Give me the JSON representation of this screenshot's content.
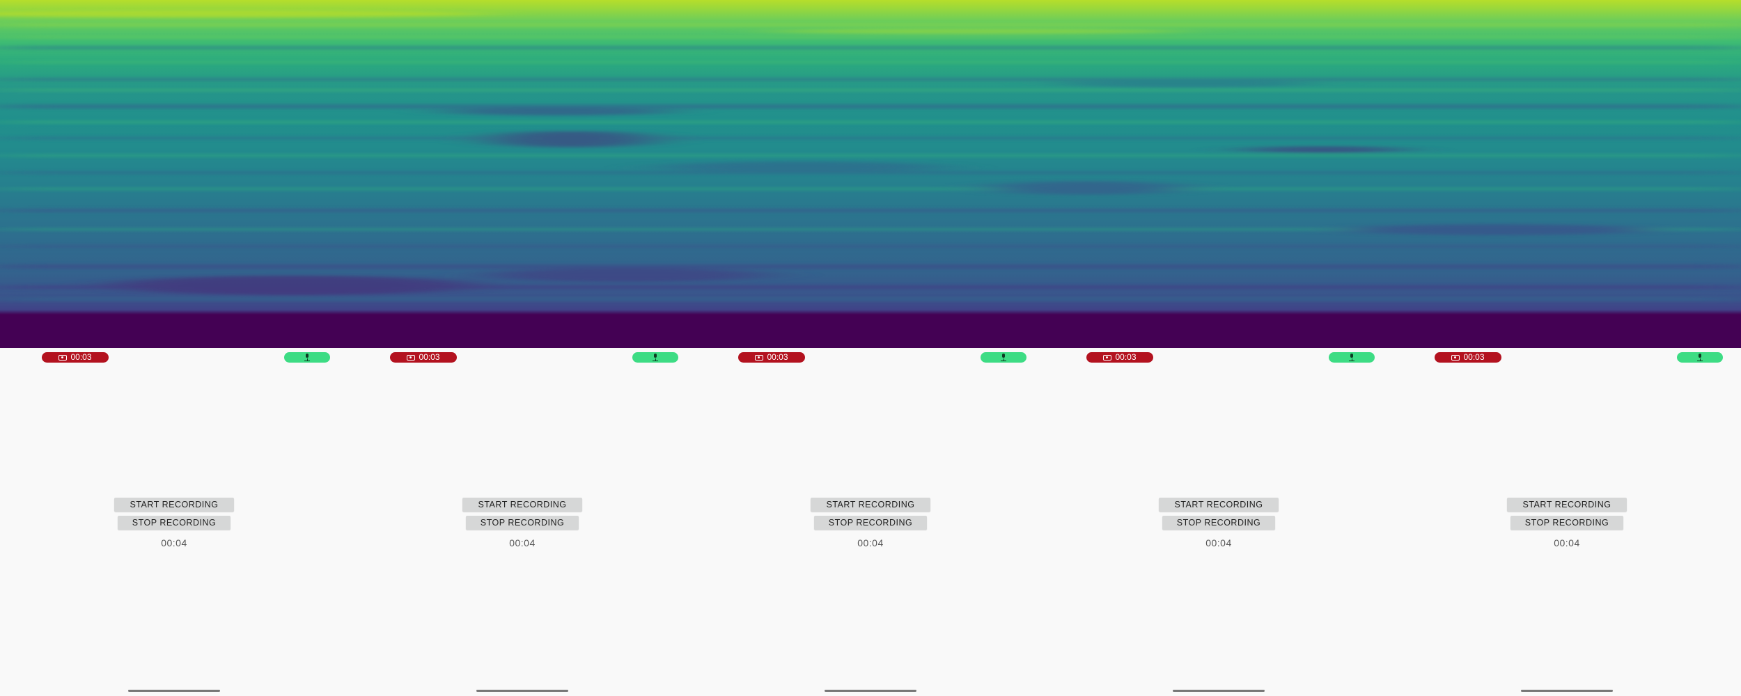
{
  "panels": [
    {
      "status": {
        "record_time": "00:03",
        "record_icon": "screen-record-icon",
        "mic_icon": "microphone-icon"
      },
      "buttons": {
        "start_label": "START RECORDING",
        "stop_label": "STOP RECORDING"
      },
      "timer": "00:04"
    },
    {
      "status": {
        "record_time": "00:03",
        "record_icon": "screen-record-icon",
        "mic_icon": "microphone-icon"
      },
      "buttons": {
        "start_label": "START RECORDING",
        "stop_label": "STOP RECORDING"
      },
      "timer": "00:04"
    },
    {
      "status": {
        "record_time": "00:03",
        "record_icon": "screen-record-icon",
        "mic_icon": "microphone-icon"
      },
      "buttons": {
        "start_label": "START RECORDING",
        "stop_label": "STOP RECORDING"
      },
      "timer": "00:04"
    },
    {
      "status": {
        "record_time": "00:03",
        "record_icon": "screen-record-icon",
        "mic_icon": "microphone-icon"
      },
      "buttons": {
        "start_label": "START RECORDING",
        "stop_label": "STOP RECORDING"
      },
      "timer": "00:04"
    },
    {
      "status": {
        "record_time": "00:03",
        "record_icon": "screen-record-icon",
        "mic_icon": "microphone-icon"
      },
      "buttons": {
        "start_label": "START RECORDING",
        "stop_label": "STOP RECORDING"
      },
      "timer": "00:04"
    }
  ],
  "colors": {
    "background": "#f9f9f9",
    "record_pill": "#b3121f",
    "mic_pill": "#3ddc84",
    "button": "#d6d7d7",
    "spectrogram_low": "#440154",
    "spectrogram_high": "#b5de2b"
  }
}
